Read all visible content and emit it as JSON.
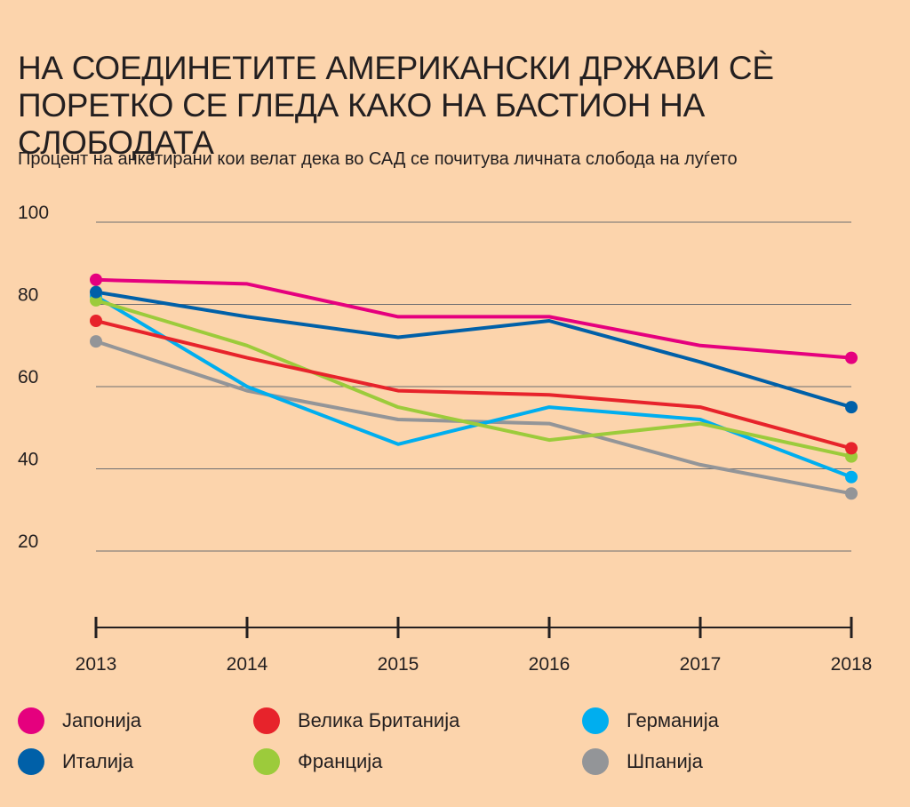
{
  "chart_data": {
    "type": "line",
    "title": "НА СОЕДИНЕТИТЕ АМЕРИКАНСКИ ДРЖАВИ СЀ ПОРЕТКО СЕ ГЛЕДА КАКО НА БАСТИОН НА СЛОБОДАТА",
    "subtitle": "Процент на анкетирани кои велат дека во САД се почитува личната слобода на луѓето",
    "x": [
      "2013",
      "2014",
      "2015",
      "2016",
      "2017",
      "2018"
    ],
    "ylim": [
      0,
      100
    ],
    "yticks": [
      20,
      40,
      60,
      80,
      100
    ],
    "grid": true,
    "legend_position": "bottom",
    "series": [
      {
        "name": "Јапонија",
        "color": "#e5007e",
        "values": [
          86,
          85,
          77,
          77,
          70,
          67
        ]
      },
      {
        "name": "Италија",
        "color": "#0060a8",
        "values": [
          83,
          77,
          72,
          76,
          66,
          55
        ]
      },
      {
        "name": "Велика Британија",
        "color": "#e7232b",
        "values": [
          76,
          67,
          59,
          58,
          55,
          45
        ]
      },
      {
        "name": "Франција",
        "color": "#9ccb3b",
        "values": [
          81,
          70,
          55,
          47,
          51,
          43
        ]
      },
      {
        "name": "Германија",
        "color": "#00aeef",
        "values": [
          82,
          60,
          46,
          55,
          52,
          38
        ]
      },
      {
        "name": "Шпанија",
        "color": "#939598",
        "values": [
          71,
          59,
          52,
          51,
          41,
          34
        ]
      }
    ]
  }
}
